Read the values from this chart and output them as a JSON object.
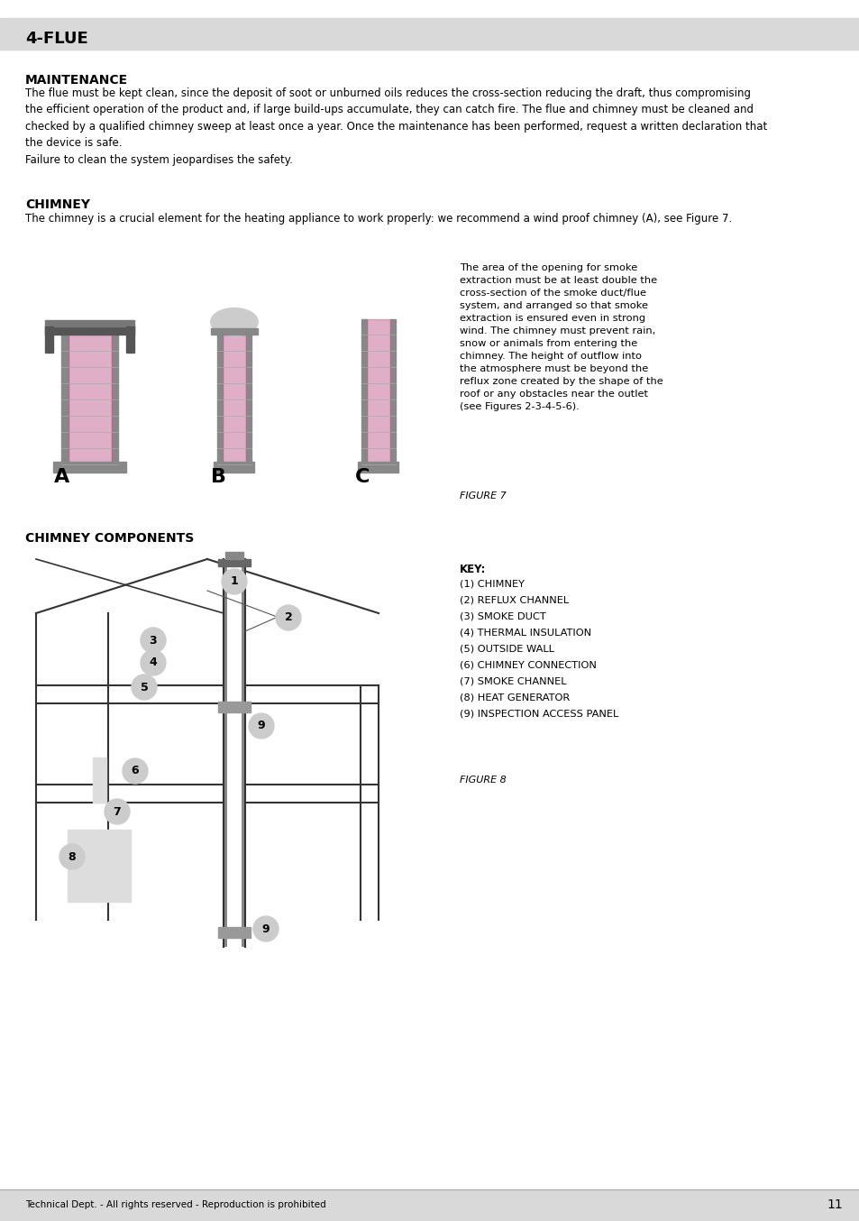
{
  "page_title": "4-FLUE",
  "bg_color": "#ffffff",
  "header_bg": "#d9d9d9",
  "footer_bg": "#d9d9d9",
  "section1_title": "MAINTENANCE",
  "section1_body": "The flue must be kept clean, since the deposit of soot or unburned oils reduces the cross-section reducing the draft, thus compromising\nthe efficient operation of the product and, if large build-ups accumulate, they can catch fire. The flue and chimney must be cleaned and\nchecked by a qualified chimney sweep at least once a year. Once the maintenance has been performed, request a written declaration that\nthe device is safe.\nFailure to clean the system jeopardises the safety.",
  "section2_title": "CHIMNEY",
  "section2_body": "The chimney is a crucial element for the heating appliance to work properly: we recommend a wind proof chimney (A), see Figure 7.",
  "figure7_caption": "FIGURE 7",
  "figure7_text": "The area of the opening for smoke\nextraction must be at least double the\ncross-section of the smoke duct/flue\nsystem, and arranged so that smoke\nextraction is ensured even in strong\nwind. The chimney must prevent rain,\nsnow or animals from entering the\nchimney. The height of outflow into\nthe atmosphere must be beyond the\nreflux zone created by the shape of the\nroof or any obstacles near the outlet\n(see Figures 2-3-4-5-6).",
  "section3_title": "CHIMNEY COMPONENTS",
  "figure8_caption": "FIGURE 8",
  "key_title": "KEY:",
  "key_items": [
    "(1) CHIMNEY",
    "(2) REFLUX CHANNEL",
    "(3) SMOKE DUCT",
    "(4) THERMAL INSULATION",
    "(5) OUTSIDE WALL",
    "(6) CHIMNEY CONNECTION",
    "(7) SMOKE CHANNEL",
    "(8) HEAT GENERATOR",
    "(9) INSPECTION ACCESS PANEL"
  ],
  "footer_text": "Technical Dept. - All rights reserved - Reproduction is prohibited",
  "page_number": "11",
  "purple_color": "#9b59b6",
  "pink_color": "#c06090"
}
